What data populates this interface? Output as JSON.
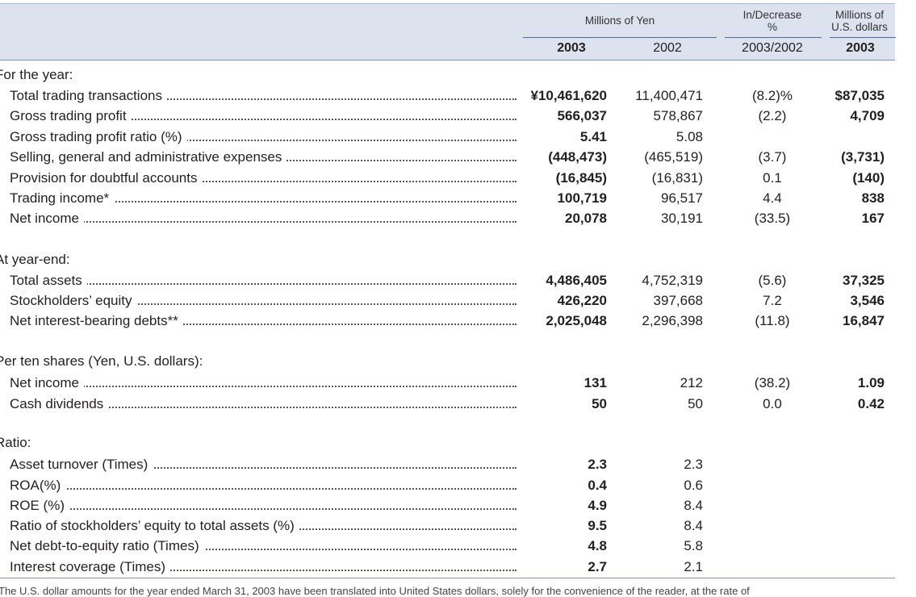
{
  "header": {
    "group_yen": "Millions of Yen",
    "group_change": "In/Decrease\n%",
    "group_usd": "Millions of\nU.S. dollars",
    "col_2003": "2003",
    "col_2002": "2002",
    "col_change": "2003/2002",
    "col_usd_2003": "2003"
  },
  "sections": [
    {
      "title": "For the year:",
      "rows": [
        {
          "label": "Total trading transactions",
          "v2003": "¥10,461,620",
          "v2002": "11,400,471",
          "change": "(8.2)%",
          "usd": "$87,035"
        },
        {
          "label": "Gross trading profit",
          "v2003": "566,037",
          "v2002": "578,867",
          "change": "(2.2)",
          "usd": "4,709"
        },
        {
          "label": "Gross trading profit ratio (%)",
          "v2003": "5.41",
          "v2002": "5.08",
          "change": "",
          "usd": ""
        },
        {
          "label": "Selling, general and administrative expenses",
          "v2003": "(448,473)",
          "v2002": "(465,519)",
          "change": "(3.7)",
          "usd": "(3,731)"
        },
        {
          "label": "Provision for doubtful accounts",
          "v2003": "(16,845)",
          "v2002": "(16,831)",
          "change": "0.1",
          "usd": "(140)"
        },
        {
          "label": "Trading income*",
          "v2003": "100,719",
          "v2002": "96,517",
          "change": "4.4",
          "usd": "838"
        },
        {
          "label": "Net income",
          "v2003": "20,078",
          "v2002": "30,191",
          "change": "(33.5)",
          "usd": "167"
        }
      ]
    },
    {
      "title": "At year-end:",
      "rows": [
        {
          "label": "Total assets",
          "v2003": "4,486,405",
          "v2002": "4,752,319",
          "change": "(5.6)",
          "usd": "37,325"
        },
        {
          "label": "Stockholders’ equity",
          "v2003": "426,220",
          "v2002": "397,668",
          "change": "7.2",
          "usd": "3,546"
        },
        {
          "label": "Net interest-bearing debts**",
          "v2003": "2,025,048",
          "v2002": "2,296,398",
          "change": "(11.8)",
          "usd": "16,847"
        }
      ]
    },
    {
      "title": "Per ten shares (Yen, U.S. dollars):",
      "rows": [
        {
          "label": "Net income",
          "v2003": "131",
          "v2002": "212",
          "change": "(38.2)",
          "usd": "1.09"
        },
        {
          "label": "Cash dividends",
          "v2003": "50",
          "v2002": "50",
          "change": "0.0",
          "usd": "0.42"
        }
      ]
    },
    {
      "title": "Ratio:",
      "rows": [
        {
          "label": "Asset turnover (Times)",
          "v2003": "2.3",
          "v2002": "2.3",
          "change": "",
          "usd": ""
        },
        {
          "label": "ROA(%)",
          "v2003": "0.4",
          "v2002": "0.6",
          "change": "",
          "usd": ""
        },
        {
          "label": "ROE (%)",
          "v2003": "4.9",
          "v2002": "8.4",
          "change": "",
          "usd": ""
        },
        {
          "label": "Ratio of stockholders’ equity to total assets (%)",
          "v2003": "9.5",
          "v2002": "8.4",
          "change": "",
          "usd": ""
        },
        {
          "label": "Net debt-to-equity ratio (Times)",
          "v2003": "4.8",
          "v2002": "5.8",
          "change": "",
          "usd": ""
        },
        {
          "label": "Interest coverage (Times)",
          "v2003": "2.7",
          "v2002": "2.1",
          "change": "",
          "usd": ""
        }
      ]
    }
  ],
  "footnote": "The U.S. dollar amounts for the year ended March 31, 2003 have been translated into United States dollars, solely for the convenience of the reader, at the rate of"
}
